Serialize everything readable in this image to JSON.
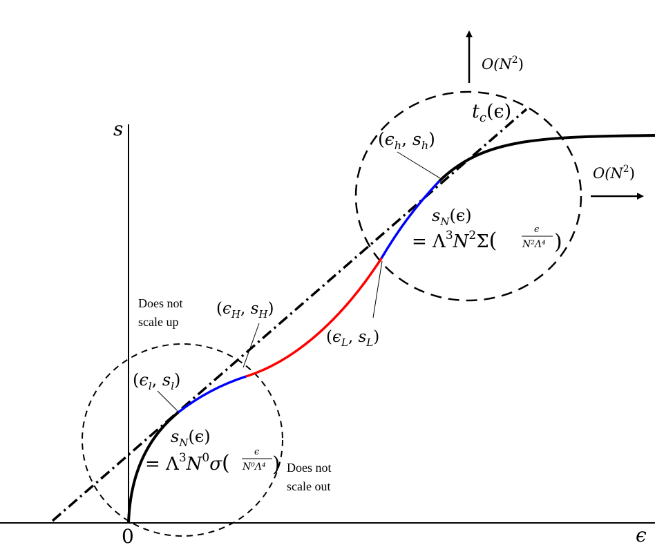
{
  "axes": {
    "y_label": "s",
    "x_label": "ϵ",
    "origin_label": "0"
  },
  "tangent_label": {
    "main": "t",
    "sub": "c",
    "arg": "(ϵ)"
  },
  "growth_up": {
    "prefix": "O(N",
    "exp": "2",
    "suffix": ")"
  },
  "growth_right": {
    "prefix": "O(N",
    "exp": "2",
    "suffix": ")"
  },
  "points": {
    "eps_h": {
      "eps": "ϵ",
      "eps_sub": "h",
      "s": "s",
      "s_sub": "h"
    },
    "eps_H": {
      "eps": "ϵ",
      "eps_sub": "H",
      "s": "s",
      "s_sub": "H"
    },
    "eps_L": {
      "eps": "ϵ",
      "eps_sub": "L",
      "s": "s",
      "s_sub": "L"
    },
    "eps_l": {
      "eps": "ϵ",
      "eps_sub": "l",
      "s": "s",
      "s_sub": "l"
    }
  },
  "formula_high": {
    "line1_s": "s",
    "line1_sub": "N",
    "line1_arg": "(ϵ)",
    "eq": "= Λ",
    "l3": "3",
    "n": "N",
    "n_exp": "2",
    "func": "Σ",
    "frac_num": "ϵ",
    "frac_den": "N²Λ⁴"
  },
  "formula_low": {
    "line1_s": "s",
    "line1_sub": "N",
    "line1_arg": "(ϵ)",
    "eq": "= Λ",
    "l3": "3",
    "n": "N",
    "n_exp": "0",
    "func": "σ",
    "frac_num": "ϵ",
    "frac_den": "N⁰Λ⁴"
  },
  "notes": {
    "does_not_scale_up_1": "Does not",
    "does_not_scale_up_2": "scale up",
    "does_not_scale_out_1": "Does not",
    "does_not_scale_out_2": "scale out"
  },
  "colors": {
    "curve": "#000000",
    "blue_segment": "#0000ff",
    "red_segment": "#ff0000"
  }
}
